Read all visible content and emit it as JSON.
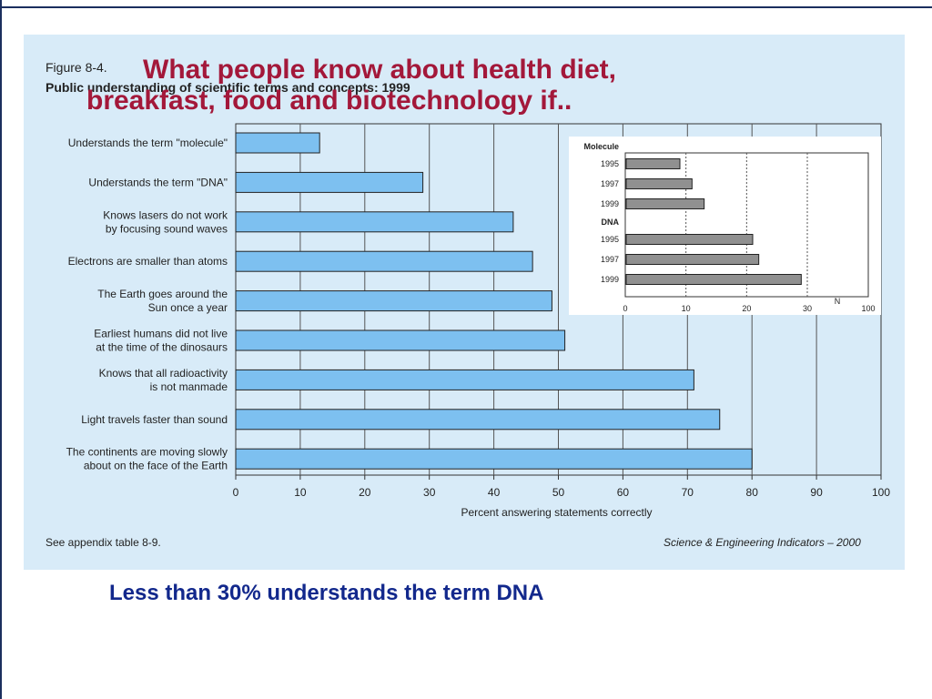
{
  "slide": {
    "title_line1": "What people know about health diet,",
    "title_line2": "breakfast, food and biotechnology if..",
    "caption": "Less than 30% understands the term DNA"
  },
  "figure": {
    "label": "Figure 8-4.",
    "subtitle": "Public understanding of scientific terms and concepts: 1999",
    "footnote": "See appendix table 8-9.",
    "source": "Science & Engineering Indicators – 2000"
  },
  "colors": {
    "bar": "#7dc0f0",
    "inset_bar": "#909090",
    "panel": "#d8ebf8",
    "title": "#a3183a",
    "caption": "#12288c"
  },
  "chart_data": [
    {
      "type": "bar",
      "orientation": "horizontal",
      "categories": [
        [
          "Understands the term \"molecule\""
        ],
        [
          "Understands the term \"DNA\""
        ],
        [
          "Knows lasers do not work",
          "by focusing sound waves"
        ],
        [
          "Electrons are smaller than atoms"
        ],
        [
          "The Earth goes around the",
          "Sun once a year"
        ],
        [
          "Earliest humans did not live",
          "at the time of the dinosaurs"
        ],
        [
          "Knows that all radioactivity",
          "is not manmade"
        ],
        [
          "Light travels faster than sound"
        ],
        [
          "The continents are moving slowly",
          "about on the face of the Earth"
        ]
      ],
      "values": [
        13,
        29,
        43,
        46,
        49,
        51,
        71,
        75,
        80
      ],
      "xlabel": "Percent answering statements correctly",
      "xlim": [
        0,
        100
      ],
      "xticks": [
        0,
        10,
        20,
        30,
        40,
        50,
        60,
        70,
        80,
        90,
        100
      ],
      "grid": true
    },
    {
      "type": "bar",
      "orientation": "horizontal",
      "groups": [
        {
          "name": "Molecule",
          "categories": [
            "1995",
            "1997",
            "1999"
          ],
          "values": [
            9,
            11,
            13
          ]
        },
        {
          "name": "DNA",
          "categories": [
            "1995",
            "1997",
            "1999"
          ],
          "values": [
            21,
            22,
            29
          ]
        }
      ],
      "xlim": [
        0,
        100
      ],
      "xticks": [
        0,
        10,
        20,
        30,
        100
      ],
      "axis_note": "N"
    }
  ]
}
